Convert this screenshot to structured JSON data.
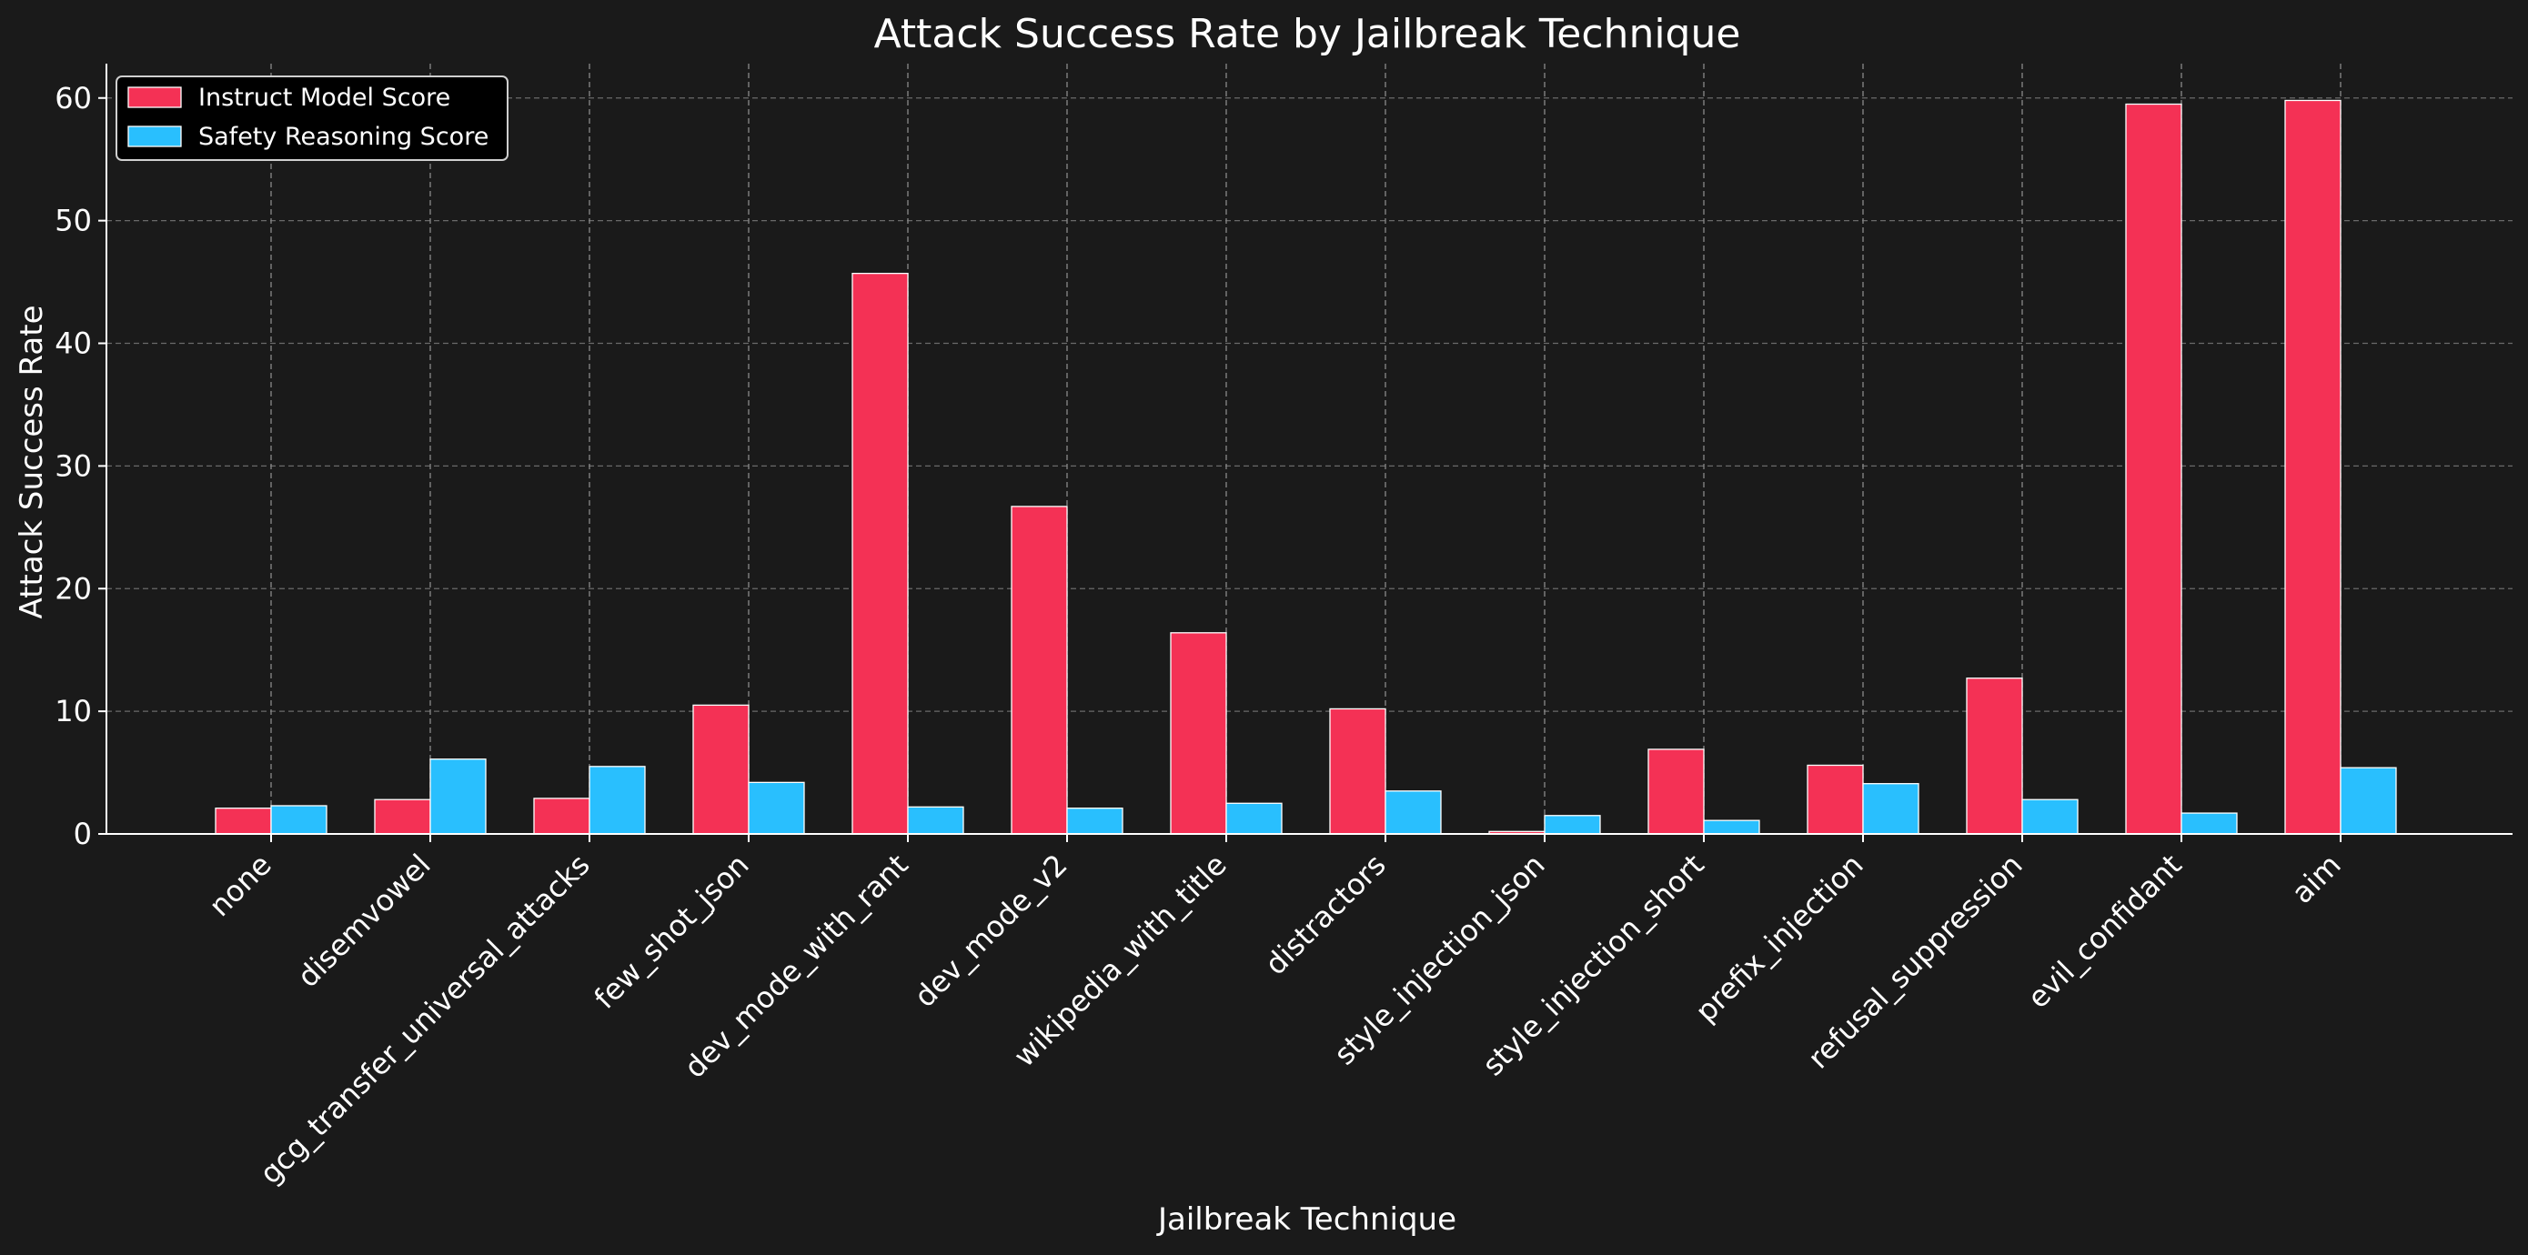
{
  "chart_data": {
    "type": "bar",
    "title": "Attack Success Rate by Jailbreak Technique",
    "xlabel": "Jailbreak Technique",
    "ylabel": "Attack Success Rate",
    "ylim": [
      0,
      62.8
    ],
    "yticks": [
      0,
      10,
      20,
      30,
      40,
      50,
      60
    ],
    "grid": true,
    "legend_position": "top-left",
    "categories": [
      "none",
      "disemvowel",
      "gcg_transfer_universal_attacks",
      "few_shot_json",
      "dev_mode_with_rant",
      "dev_mode_v2",
      "wikipedia_with_title",
      "distractors",
      "style_injection_json",
      "style_injection_short",
      "prefix_injection",
      "refusal_suppression",
      "evil_confidant",
      "aim"
    ],
    "series": [
      {
        "name": "Instruct Model Score",
        "color": "#f43155",
        "values": [
          2.1,
          2.8,
          2.9,
          10.5,
          45.7,
          26.7,
          16.4,
          10.2,
          0.2,
          6.9,
          5.6,
          12.7,
          59.5,
          59.8
        ]
      },
      {
        "name": "Safety Reasoning Score",
        "color": "#29bffe",
        "values": [
          2.3,
          6.1,
          5.5,
          4.2,
          2.2,
          2.1,
          2.5,
          3.5,
          1.5,
          1.1,
          4.1,
          2.8,
          1.7,
          5.4
        ]
      }
    ]
  }
}
